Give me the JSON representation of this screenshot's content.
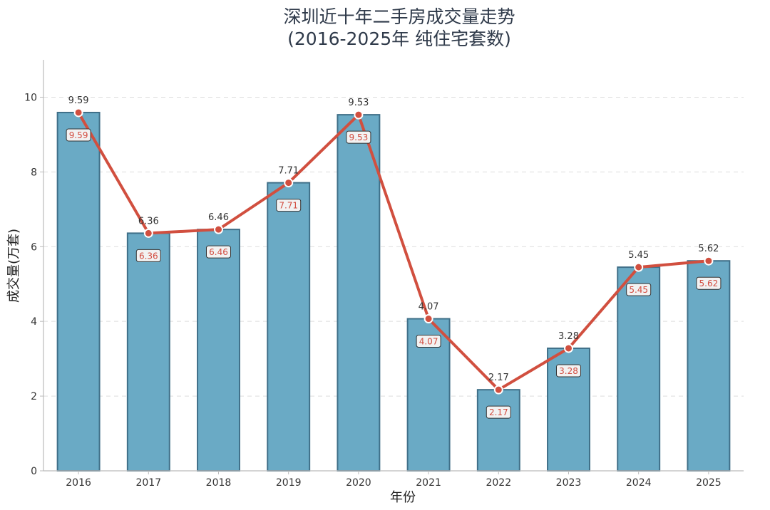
{
  "chart_data": {
    "type": "bar",
    "title": "深圳近十年二手房成交量走势",
    "subtitle": "(2016-2025年 纯住宅套数)",
    "xlabel": "年份",
    "ylabel": "成交量(万套)",
    "categories": [
      "2016",
      "2017",
      "2018",
      "2019",
      "2020",
      "2021",
      "2022",
      "2023",
      "2024",
      "2025"
    ],
    "values": [
      9.59,
      6.36,
      6.46,
      7.71,
      9.53,
      4.07,
      2.17,
      3.28,
      5.45,
      5.62
    ],
    "value_labels": [
      "9.59",
      "6.36",
      "6.46",
      "7.71",
      "9.53",
      "4.07",
      "2.17",
      "3.28",
      "5.45",
      "5.62"
    ],
    "ylim": [
      0,
      11
    ],
    "yticks": [
      0,
      2,
      4,
      6,
      8,
      10
    ],
    "grid": "horizontal dashed",
    "overlay": "line with markers over bars, same values",
    "colors": {
      "bar_fill": "#6aaac5",
      "bar_edge": "#3f6f88",
      "line": "#d14f3f",
      "marker_fill": "#d14f3f",
      "marker_edge": "#ffffff",
      "grid": "#dddddd",
      "axis": "#bbbbbb",
      "label_box_fill": "#f2f2f2",
      "label_box_edge": "#333333",
      "label_box_text": "#d24b3e"
    }
  }
}
